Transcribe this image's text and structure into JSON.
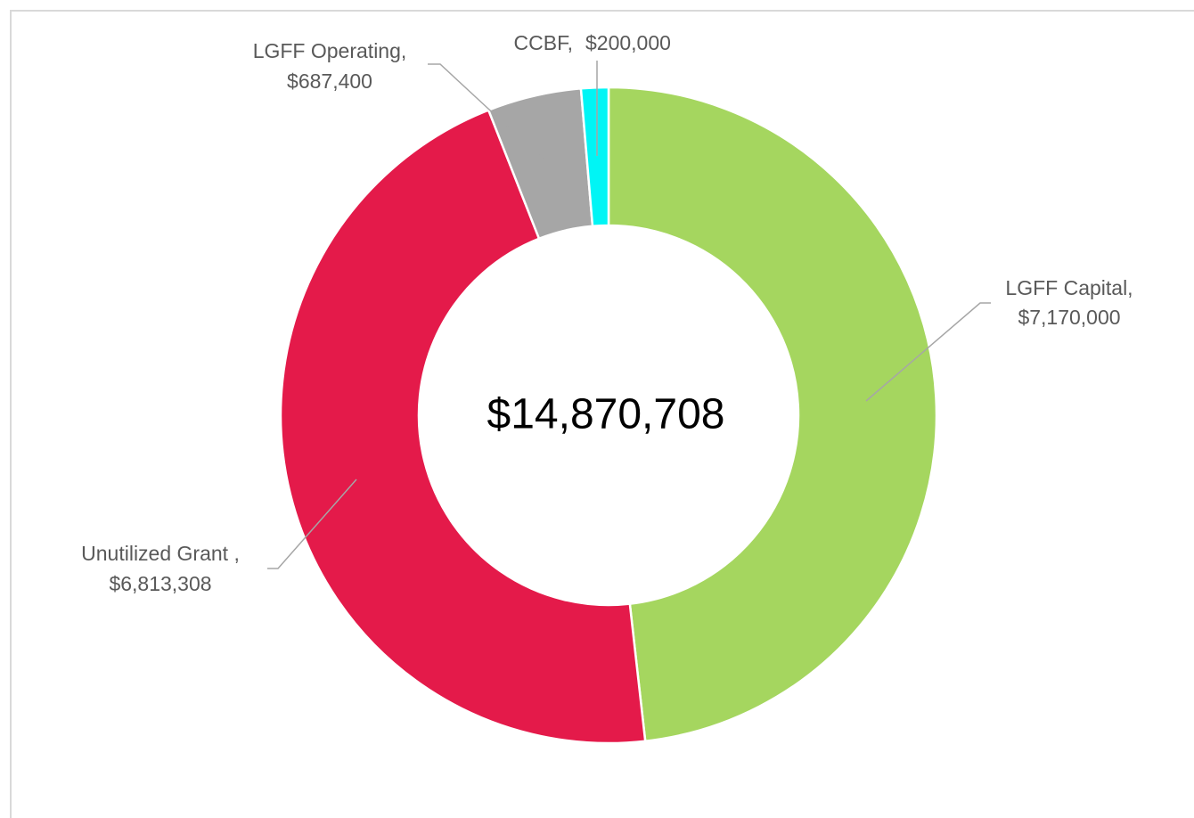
{
  "chart_data": {
    "type": "donut",
    "categories": [
      "LGFF Capital,",
      "Unutilized Grant ,",
      "LGFF Operating,",
      "CCBF,"
    ],
    "values": [
      7170000,
      6813308,
      687400,
      200000
    ],
    "value_labels": [
      "$7,170,000",
      "$6,813,308",
      "$687,400",
      "$200,000"
    ],
    "colors": [
      "#a5d65f",
      "#e41a4a",
      "#a6a6a6",
      "#00f5f5"
    ],
    "center_label": "$14,870,708"
  }
}
